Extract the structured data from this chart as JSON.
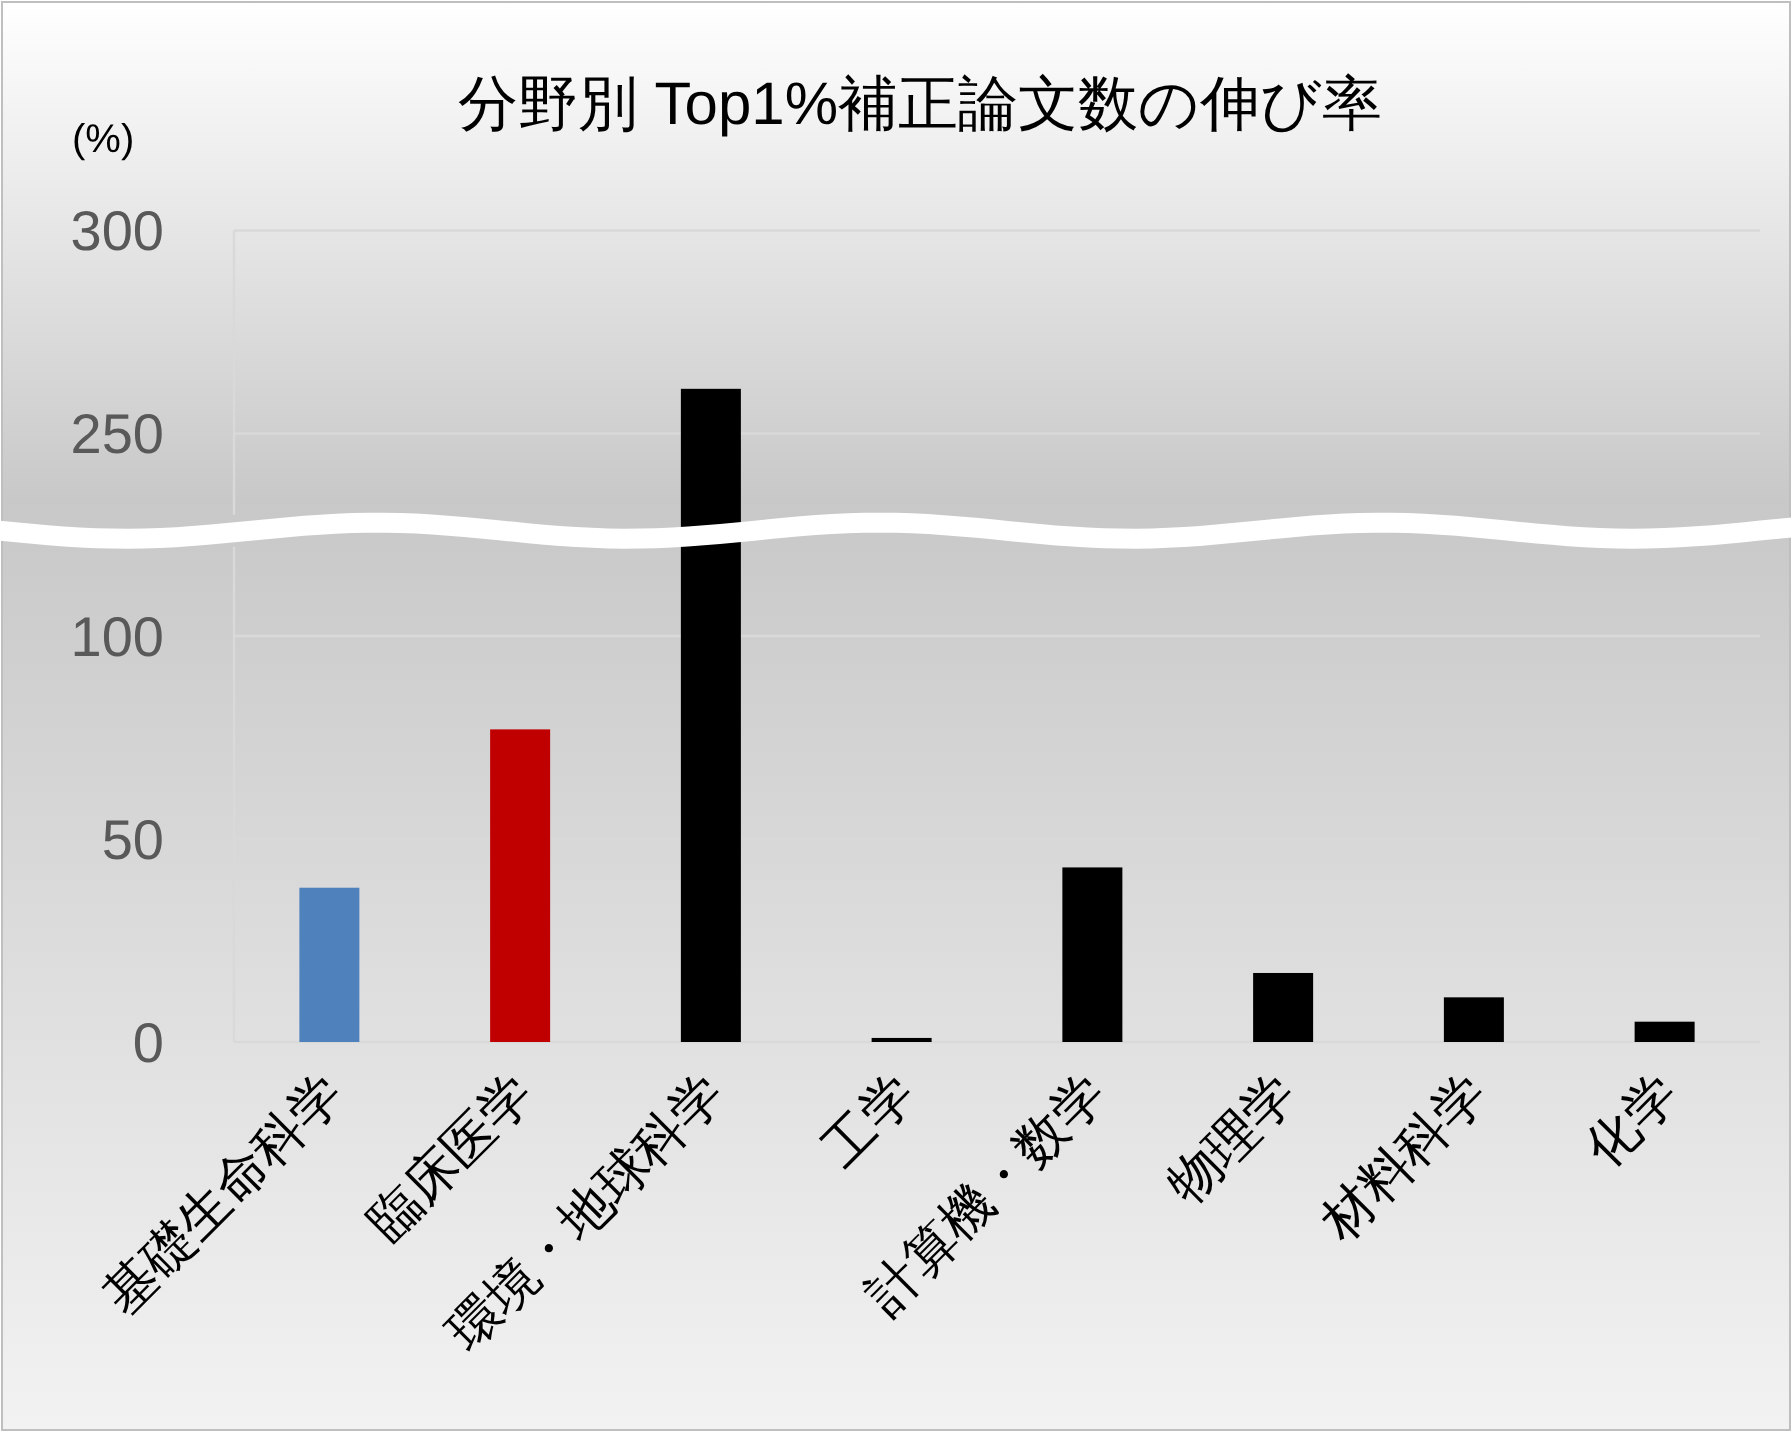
{
  "chart_data": [
    {
      "type": "bar",
      "title": "分野別 Top1%補正論文数の伸び率",
      "ylabel": "(%)",
      "categories": [
        null,
        null,
        null,
        null,
        null,
        null,
        null,
        null
      ],
      "values": [
        null,
        null,
        261,
        null,
        null,
        null,
        null,
        null
      ],
      "colors": [
        null,
        null,
        "#000000",
        null,
        null,
        null,
        null,
        null
      ],
      "ylim": [
        230,
        300
      ],
      "yticks": [
        250,
        300
      ],
      "grid": "y",
      "tick_labels": "y"
    },
    {
      "type": "bar",
      "categories": [
        "基礎生命科学",
        "臨床医学",
        "環境・地球科学",
        "工学",
        "計算機・数学",
        "物理学",
        "材料科学",
        "化学"
      ],
      "values": [
        38,
        77,
        null,
        1,
        43,
        17,
        11,
        5
      ],
      "colors": [
        "#4f81bd",
        "#c00000",
        null,
        "#000000",
        "#000000",
        "#000000",
        "#000000",
        "#000000"
      ],
      "ylim": [
        0,
        122
      ],
      "yticks": [
        0,
        50,
        100
      ],
      "grid": "y"
    }
  ]
}
